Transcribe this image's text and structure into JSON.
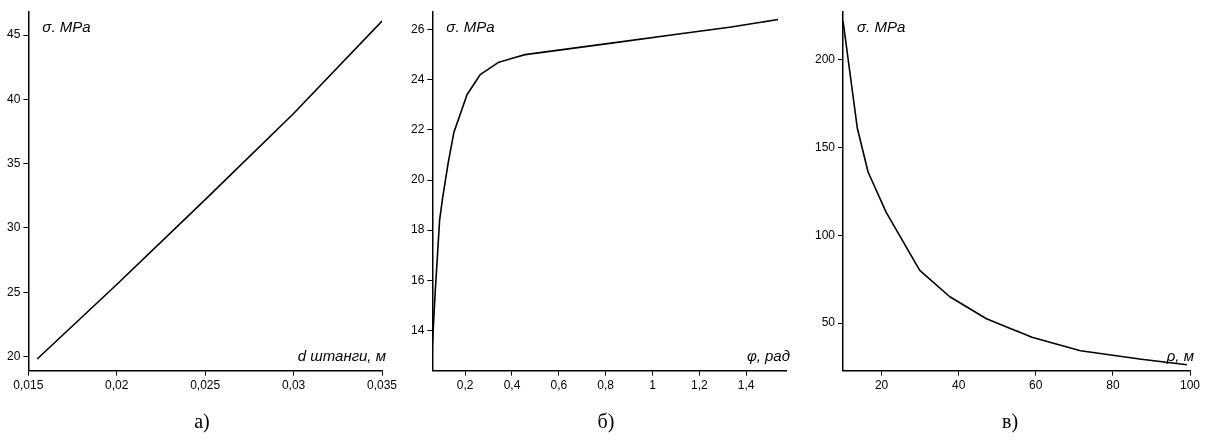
{
  "chart_data": [
    {
      "type": "line",
      "xlabel": "d штанги, м",
      "ylabel": "σ. MPa",
      "annotations": [
        "а)"
      ],
      "x": [
        0.0155,
        0.02,
        0.025,
        0.03,
        0.035
      ],
      "series": [
        {
          "color": "#000000",
          "values": [
            19.8,
            25.6,
            32.2,
            38.9,
            46.1
          ]
        }
      ],
      "xlim": [
        0.015,
        0.035
      ],
      "ylim": [
        18.9,
        46.8
      ],
      "xticks": [
        {
          "value": 0.015,
          "label": "0,015"
        },
        {
          "value": 0.02,
          "label": "0,02"
        },
        {
          "value": 0.025,
          "label": "0,025"
        },
        {
          "value": 0.03,
          "label": "0,03"
        },
        {
          "value": 0.035,
          "label": "0,035"
        }
      ],
      "yticks": [
        20,
        25,
        30,
        35,
        40,
        45
      ],
      "grid": false,
      "legend": false,
      "marker": "none",
      "line_style": "solid"
    },
    {
      "type": "line",
      "xlabel": "φ, рад",
      "ylabel": "σ. MPa",
      "annotations": [
        "б)"
      ],
      "x": [
        0.06,
        0.072,
        0.091,
        0.104,
        0.128,
        0.152,
        0.208,
        0.264,
        0.344,
        0.456,
        0.616,
        0.856,
        1.096,
        1.336,
        1.536
      ],
      "series": [
        {
          "color": "#000000",
          "values": [
            13.4,
            15.5,
            18.4,
            19.3,
            20.7,
            21.9,
            23.4,
            24.2,
            24.7,
            25.0,
            25.2,
            25.5,
            25.8,
            26.1,
            26.4
          ]
        }
      ],
      "xlim": [
        0.06,
        1.57
      ],
      "ylim": [
        12.4,
        26.7
      ],
      "xticks": [
        {
          "value": 0.2,
          "label": "0,2"
        },
        {
          "value": 0.4,
          "label": "0,4"
        },
        {
          "value": 0.6,
          "label": "0,6"
        },
        {
          "value": 0.8,
          "label": "0,8"
        },
        1,
        {
          "value": 1.2,
          "label": "1,2"
        },
        {
          "value": 1.4,
          "label": "1,4"
        }
      ],
      "yticks": [
        14,
        16,
        18,
        20,
        22,
        24,
        26
      ],
      "grid": false,
      "legend": false,
      "marker": "none",
      "line_style": "solid"
    },
    {
      "type": "line",
      "xlabel": "ρ, м",
      "ylabel": "σ. MPa",
      "annotations": [
        "в)"
      ],
      "x": [
        10,
        13.7,
        16.5,
        21.2,
        29.9,
        37.7,
        47.2,
        59,
        71.6,
        87.4,
        99.2
      ],
      "series": [
        {
          "color": "#000000",
          "values": [
            222,
            161,
            136,
            113,
            80,
            65,
            52.5,
            42,
            34.3,
            29.5,
            26.3
          ]
        }
      ],
      "xlim": [
        10,
        100
      ],
      "ylim": [
        23,
        227
      ],
      "xticks": [
        20,
        40,
        60,
        80,
        100
      ],
      "yticks": [
        50,
        100,
        150,
        200
      ],
      "grid": false,
      "legend": false,
      "marker": "none",
      "line_style": "solid"
    }
  ]
}
